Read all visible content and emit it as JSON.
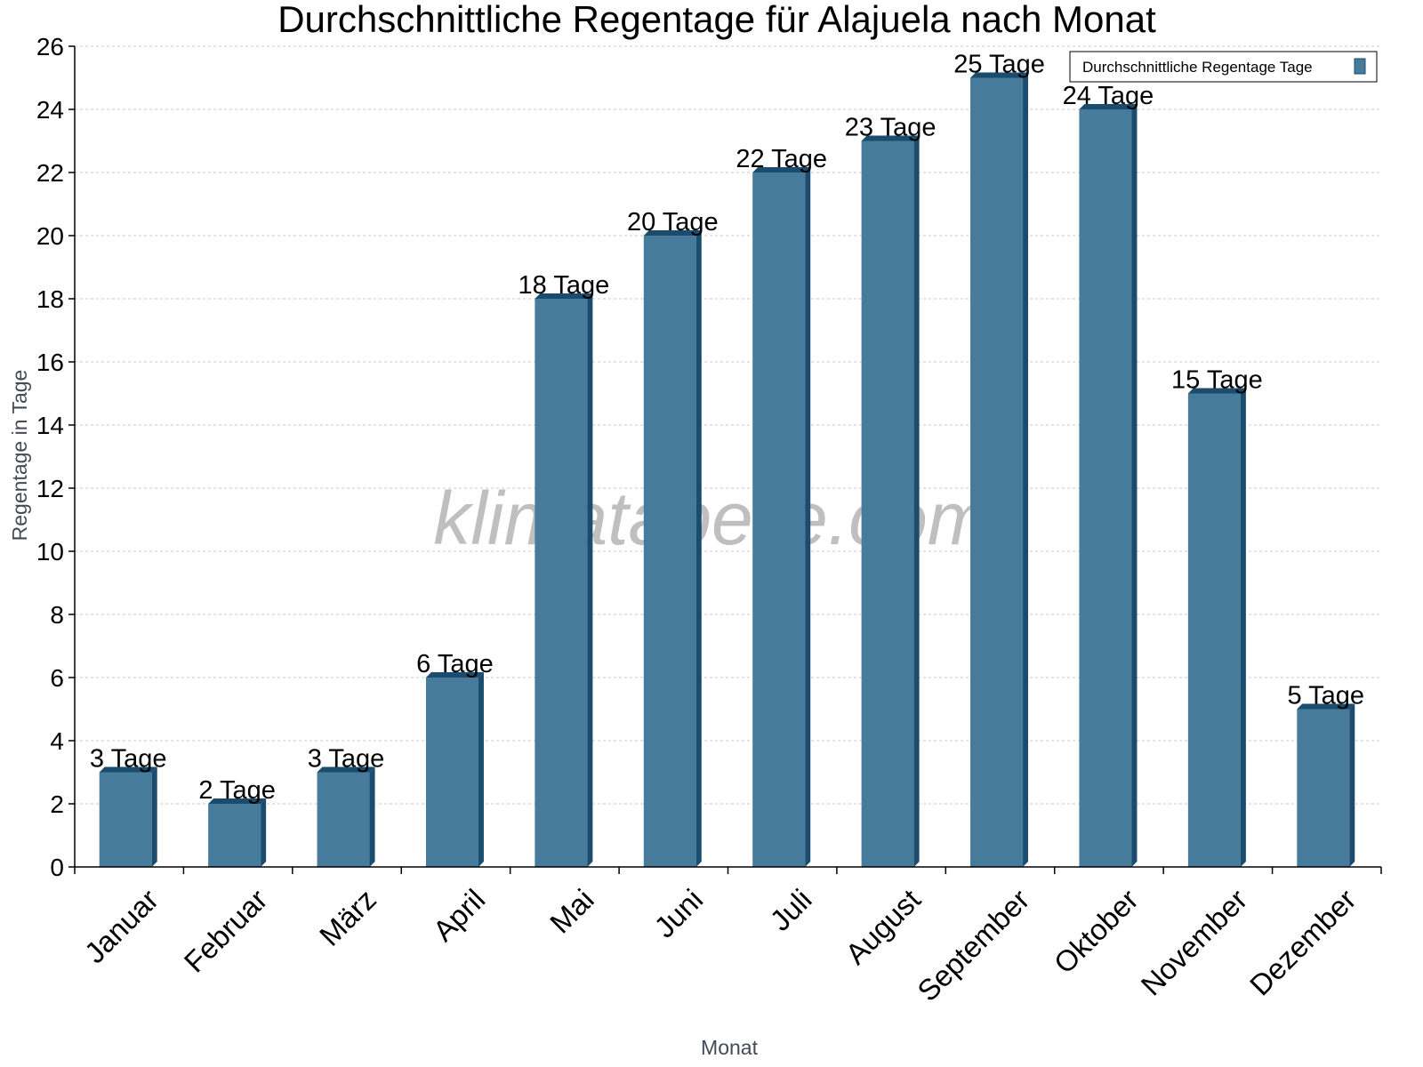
{
  "chart_data": {
    "type": "bar",
    "title": "Durchschnittliche Regentage für Alajuela nach Monat",
    "xlabel": "Monat",
    "ylabel": "Regentage in Tage",
    "categories": [
      "Januar",
      "Februar",
      "März",
      "April",
      "Mai",
      "Juni",
      "Juli",
      "August",
      "September",
      "Oktober",
      "November",
      "Dezember"
    ],
    "series": [
      {
        "name": "Durchschnittliche Regentage Tage",
        "values": [
          3,
          2,
          3,
          6,
          18,
          20,
          22,
          23,
          25,
          24,
          15,
          5
        ]
      }
    ],
    "data_labels": [
      "3 Tage",
      "2 Tage",
      "3 Tage",
      "6 Tage",
      "18 Tage",
      "20 Tage",
      "22 Tage",
      "23 Tage",
      "25 Tage",
      "24 Tage",
      "15 Tage",
      "5 Tage"
    ],
    "ylim": [
      0,
      26
    ],
    "yticks": [
      0,
      2,
      4,
      6,
      8,
      10,
      12,
      14,
      16,
      18,
      20,
      22,
      24,
      26
    ],
    "grid": true,
    "legend_position": "top-right",
    "watermark": "klimatabelle.com",
    "colors": {
      "bar_front": "#467b9c",
      "bar_side": "#1b4c6e",
      "grid": "#c8c8c8"
    }
  }
}
